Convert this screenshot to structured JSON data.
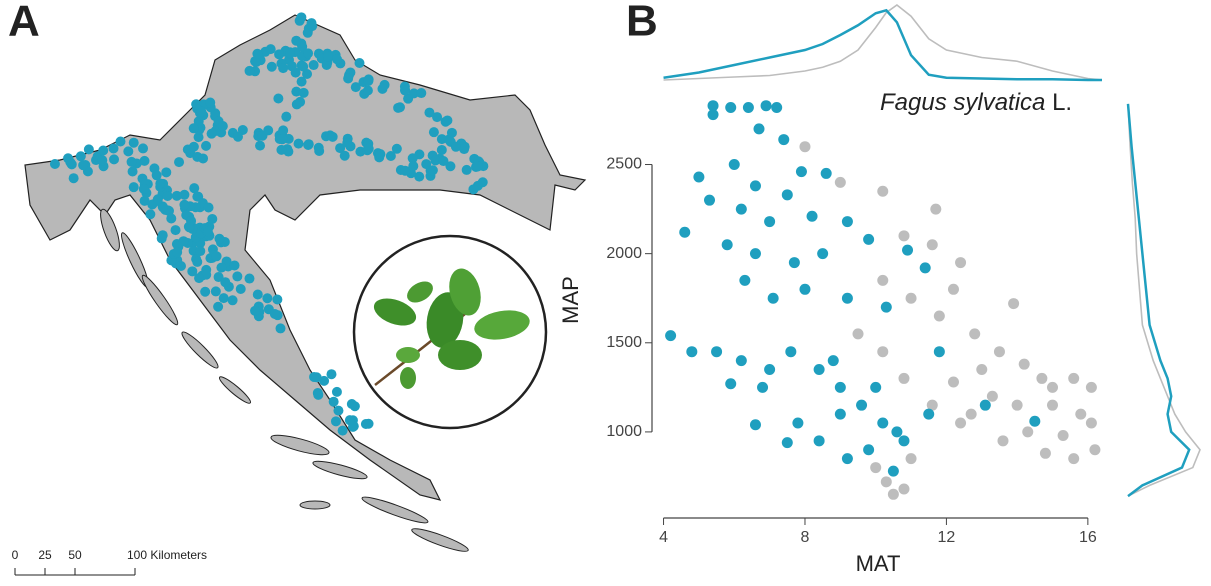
{
  "panel_labels": [
    "A",
    "B"
  ],
  "map": {
    "scale_ticks": [
      0,
      25,
      50,
      {
        "value": 100,
        "label": "100 Kilometers"
      }
    ]
  },
  "chart_data": {
    "type": "scatter",
    "title": "Fagus sylvatica",
    "title_author": "L.",
    "x_label": "MAT",
    "y_label": "MAP",
    "xlim": [
      3.9,
      16.4
    ],
    "ylim": [
      590,
      2890
    ],
    "xticks": [
      4,
      8,
      12,
      16
    ],
    "yticks": [
      1000,
      1500,
      2000,
      2500
    ],
    "series": [
      {
        "color": "#bdbdbd",
        "x": [
          8.0,
          9.0,
          10.2,
          11.7,
          10.8,
          11.6,
          12.4,
          10.2,
          11.0,
          12.2,
          13.9,
          11.8,
          12.8,
          13.5,
          14.2,
          13.0,
          14.7,
          15.6,
          16.1,
          12.2,
          13.3,
          14.0,
          15.0,
          15.8,
          16.1,
          14.3,
          15.3,
          16.2,
          15.6,
          14.8,
          13.6,
          12.4,
          11.6,
          10.8,
          10.2,
          9.5,
          11.0,
          10.3,
          10.8,
          10.5,
          10.0,
          12.7,
          15.0
        ],
        "values": [
          2600,
          2400,
          2350,
          2250,
          2100,
          2050,
          1950,
          1850,
          1750,
          1800,
          1720,
          1650,
          1550,
          1450,
          1380,
          1350,
          1300,
          1300,
          1250,
          1280,
          1200,
          1150,
          1150,
          1100,
          1050,
          1000,
          980,
          900,
          850,
          880,
          950,
          1050,
          1150,
          1300,
          1450,
          1550,
          850,
          720,
          680,
          650,
          800,
          1100,
          1250
        ]
      },
      {
        "color": "#1f9fbf",
        "x": [
          5.4,
          5.9,
          6.4,
          6.9,
          7.2,
          5.4,
          6.7,
          7.4,
          6.0,
          7.9,
          5.0,
          8.6,
          6.6,
          7.5,
          4.6,
          5.3,
          6.2,
          7.0,
          8.2,
          9.2,
          5.8,
          6.6,
          7.7,
          8.5,
          9.8,
          10.9,
          11.4,
          6.3,
          7.1,
          8.0,
          9.2,
          10.3,
          4.2,
          4.8,
          5.5,
          6.2,
          7.0,
          5.9,
          6.8,
          7.6,
          8.4,
          9.0,
          9.6,
          10.2,
          10.6,
          9.8,
          9.2,
          10.5,
          8.4,
          7.8,
          9.0,
          10.0,
          11.8,
          13.1,
          14.5,
          6.6,
          7.5,
          11.5,
          8.8,
          10.8
        ],
        "values": [
          2830,
          2820,
          2820,
          2830,
          2820,
          2780,
          2700,
          2640,
          2500,
          2460,
          2430,
          2450,
          2380,
          2330,
          2120,
          2300,
          2250,
          2180,
          2210,
          2180,
          2050,
          2000,
          1950,
          2000,
          2080,
          2020,
          1920,
          1850,
          1750,
          1800,
          1750,
          1700,
          1540,
          1450,
          1450,
          1400,
          1350,
          1270,
          1250,
          1450,
          1350,
          1250,
          1150,
          1050,
          1000,
          900,
          850,
          780,
          950,
          1050,
          1100,
          1250,
          1450,
          1150,
          1060,
          1040,
          940,
          1100,
          1400,
          950
        ]
      }
    ],
    "x_density": {
      "grid": [
        4,
        5,
        6,
        7,
        8,
        8.5,
        9,
        9.5,
        10,
        10.3,
        10.6,
        11,
        11.5,
        12,
        13,
        14,
        15,
        16,
        16.4
      ],
      "values": [
        [
          0.0,
          0.02,
          0.04,
          0.06,
          0.12,
          0.17,
          0.25,
          0.4,
          0.7,
          0.9,
          1.0,
          0.85,
          0.55,
          0.4,
          0.3,
          0.25,
          0.12,
          0.02,
          0.0
        ],
        [
          0.03,
          0.1,
          0.2,
          0.3,
          0.4,
          0.48,
          0.6,
          0.73,
          0.89,
          0.93,
          0.77,
          0.33,
          0.07,
          0.03,
          0.02,
          0.01,
          0.01,
          0.0,
          0.0
        ]
      ]
    },
    "y_density": {
      "grid": [
        2840,
        2600,
        2400,
        2200,
        2000,
        1800,
        1600,
        1400,
        1300,
        1200,
        1100,
        1000,
        900,
        800,
        700,
        640
      ],
      "values": [
        [
          0.0,
          0.03,
          0.06,
          0.1,
          0.12,
          0.16,
          0.2,
          0.35,
          0.45,
          0.55,
          0.65,
          0.8,
          1.0,
          0.9,
          0.3,
          0.0
        ],
        [
          0.0,
          0.05,
          0.1,
          0.15,
          0.2,
          0.25,
          0.3,
          0.45,
          0.55,
          0.6,
          0.55,
          0.6,
          0.85,
          0.75,
          0.2,
          0.0
        ]
      ]
    }
  }
}
